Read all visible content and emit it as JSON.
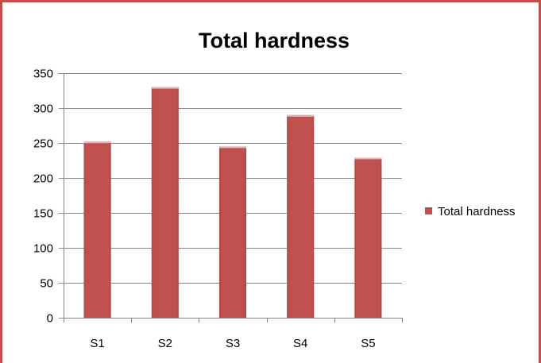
{
  "chart_data": {
    "type": "bar",
    "title": "Total hardness",
    "categories": [
      "S1",
      "S2",
      "S3",
      "S4",
      "S5"
    ],
    "series": [
      {
        "name": "Total hardness",
        "values": [
          252,
          330,
          245,
          290,
          229
        ],
        "color": "#c0504d"
      }
    ],
    "ylim": [
      0,
      350
    ],
    "yticks": [
      0,
      50,
      100,
      150,
      200,
      250,
      300,
      350
    ],
    "grid": true,
    "legend_position": "right"
  }
}
